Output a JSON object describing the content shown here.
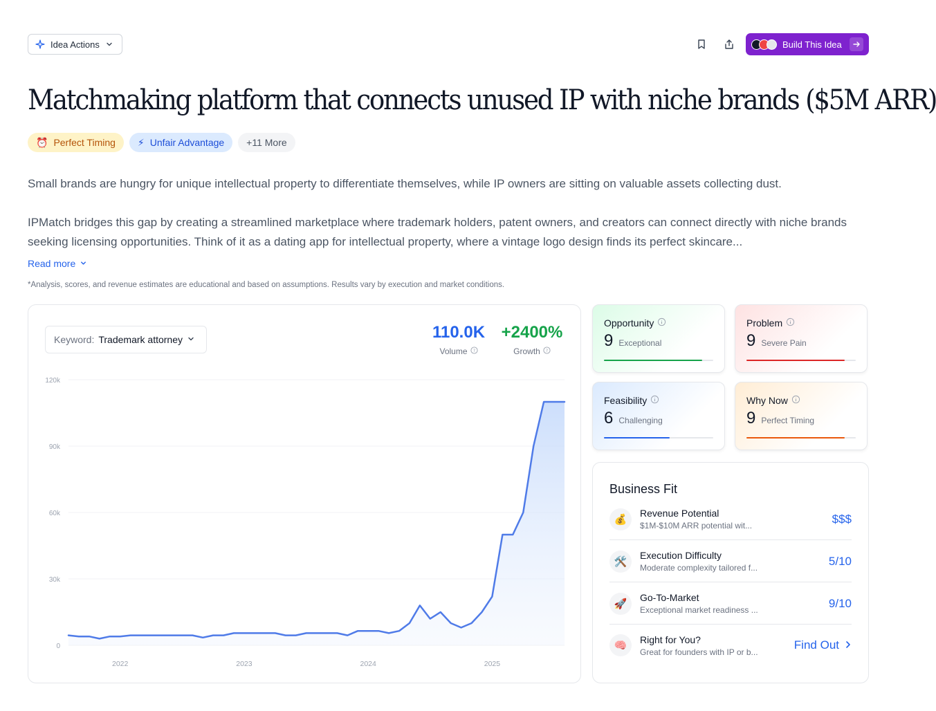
{
  "header": {
    "idea_actions_label": "Idea Actions",
    "build_label": "Build This Idea"
  },
  "title": "Matchmaking platform that connects unused IP with niche brands ($5M ARR)",
  "tags": [
    {
      "icon": "⏰",
      "label": "Perfect Timing"
    },
    {
      "icon": "⚡",
      "label": "Unfair Advantage"
    },
    {
      "label": "+11 More"
    }
  ],
  "description": {
    "p1": "Small brands are hungry for unique intellectual property to differentiate themselves, while IP owners are sitting on valuable assets collecting dust.",
    "p2": "IPMatch bridges this gap by creating a streamlined marketplace where trademark holders, patent owners, and creators can connect directly with niche brands seeking licensing opportunities. Think of it as a dating app for intellectual property, where a vintage logo design finds its perfect skincare...",
    "read_more": "Read more"
  },
  "disclaimer": "*Analysis, scores, and revenue estimates are educational and based on assumptions. Results vary by execution and market conditions.",
  "trend": {
    "keyword_label": "Keyword:",
    "keyword_value": "Trademark attorney",
    "volume_value": "110.0K",
    "volume_label": "Volume",
    "growth_value": "+2400%",
    "growth_label": "Growth",
    "colors": {
      "volume": "#2563eb",
      "growth": "#16a34a",
      "line": "#4f7be8"
    }
  },
  "chart_data": {
    "type": "area",
    "y_ticks": [
      "120k",
      "90k",
      "60k",
      "30k",
      "0"
    ],
    "x_ticks": [
      "2022",
      "2023",
      "2024",
      "2025"
    ],
    "ylim": [
      0,
      120000
    ],
    "x": [
      "2021-08",
      "2021-09",
      "2021-10",
      "2021-11",
      "2021-12",
      "2022-01",
      "2022-02",
      "2022-03",
      "2022-04",
      "2022-05",
      "2022-06",
      "2022-07",
      "2022-08",
      "2022-09",
      "2022-10",
      "2022-11",
      "2022-12",
      "2023-01",
      "2023-02",
      "2023-03",
      "2023-04",
      "2023-05",
      "2023-06",
      "2023-07",
      "2023-08",
      "2023-09",
      "2023-10",
      "2023-11",
      "2023-12",
      "2024-01",
      "2024-02",
      "2024-03",
      "2024-04",
      "2024-05",
      "2024-06",
      "2024-07",
      "2024-08",
      "2024-09",
      "2024-10",
      "2024-11",
      "2024-12",
      "2025-01",
      "2025-02",
      "2025-03",
      "2025-04",
      "2025-05",
      "2025-06",
      "2025-07",
      "2025-08"
    ],
    "values": [
      4500,
      4000,
      4000,
      3000,
      4000,
      4000,
      4500,
      4500,
      4500,
      4500,
      4500,
      4500,
      4500,
      3500,
      4500,
      4500,
      5500,
      5500,
      5500,
      5500,
      5500,
      4500,
      4500,
      5500,
      5500,
      5500,
      5500,
      4500,
      6500,
      6500,
      6500,
      5500,
      6500,
      10000,
      18000,
      12000,
      15000,
      10000,
      8000,
      10000,
      15000,
      22000,
      50000,
      50000,
      60000,
      90000,
      110000,
      110000,
      110000
    ]
  },
  "scores": [
    {
      "name": "Opportunity",
      "value": "9",
      "word": "Exceptional",
      "fill": 0.9,
      "color": "#16a34a"
    },
    {
      "name": "Problem",
      "value": "9",
      "word": "Severe Pain",
      "fill": 0.9,
      "color": "#dc2626"
    },
    {
      "name": "Feasibility",
      "value": "6",
      "word": "Challenging",
      "fill": 0.6,
      "color": "#2563eb"
    },
    {
      "name": "Why Now",
      "value": "9",
      "word": "Perfect Timing",
      "fill": 0.9,
      "color": "#ea580c"
    }
  ],
  "business_fit": {
    "title": "Business Fit",
    "rows": [
      {
        "icon": "💰",
        "title": "Revenue Potential",
        "desc": "$1M-$10M ARR potential wit...",
        "value": "$$$"
      },
      {
        "icon": "🛠️",
        "title": "Execution Difficulty",
        "desc": "Moderate complexity tailored f...",
        "value": "5/10"
      },
      {
        "icon": "🚀",
        "title": "Go-To-Market",
        "desc": "Exceptional market readiness ...",
        "value": "9/10"
      },
      {
        "icon": "🧠",
        "title": "Right for You?",
        "desc": "Great for founders with IP or b...",
        "value": "Find Out"
      }
    ]
  }
}
